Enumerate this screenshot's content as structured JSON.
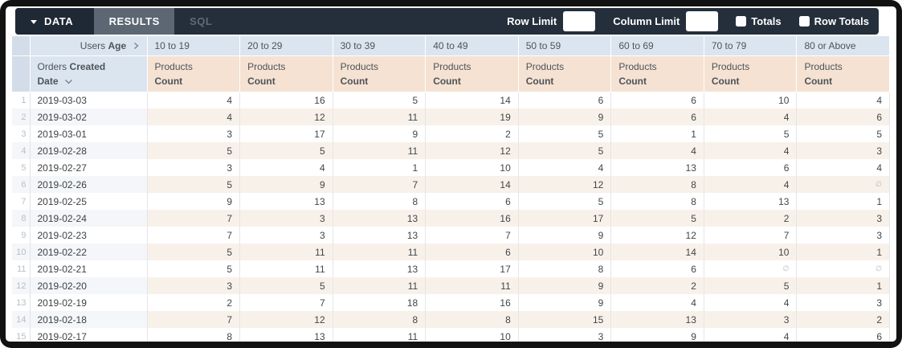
{
  "toolbar": {
    "tabs": [
      {
        "label": "DATA"
      },
      {
        "label": "RESULTS"
      },
      {
        "label": "SQL"
      }
    ],
    "row_limit_label": "Row Limit",
    "column_limit_label": "Column Limit",
    "row_limit_value": "",
    "column_limit_value": "",
    "totals_label": "Totals",
    "row_totals_label": "Row Totals",
    "totals_checked": false,
    "row_totals_checked": false
  },
  "table": {
    "pivot_dimension": {
      "prefix": "Users",
      "bold": "Age"
    },
    "row_dimension": {
      "line1_regular": "Orders",
      "line1_bold": "Created",
      "line2_bold": "Date"
    },
    "age_buckets": [
      "10 to 19",
      "20 to 29",
      "30 to 39",
      "40 to 49",
      "50 to 59",
      "60 to 69",
      "70 to 79",
      "80 or Above"
    ],
    "measure": {
      "line1": "Products",
      "line2": "Count"
    },
    "null_symbol": "∅",
    "rows": [
      {
        "num": 1,
        "date": "2019-03-03",
        "values": [
          4,
          16,
          5,
          14,
          6,
          6,
          10,
          4
        ]
      },
      {
        "num": 2,
        "date": "2019-03-02",
        "values": [
          4,
          12,
          11,
          19,
          9,
          6,
          4,
          6
        ]
      },
      {
        "num": 3,
        "date": "2019-03-01",
        "values": [
          3,
          17,
          9,
          2,
          5,
          1,
          5,
          5
        ]
      },
      {
        "num": 4,
        "date": "2019-02-28",
        "values": [
          5,
          5,
          11,
          12,
          5,
          4,
          4,
          3
        ]
      },
      {
        "num": 5,
        "date": "2019-02-27",
        "values": [
          3,
          4,
          1,
          10,
          4,
          13,
          6,
          4
        ]
      },
      {
        "num": 6,
        "date": "2019-02-26",
        "values": [
          5,
          9,
          7,
          14,
          12,
          8,
          4,
          "∅"
        ]
      },
      {
        "num": 7,
        "date": "2019-02-25",
        "values": [
          9,
          13,
          8,
          6,
          5,
          8,
          13,
          1
        ]
      },
      {
        "num": 8,
        "date": "2019-02-24",
        "values": [
          7,
          3,
          13,
          16,
          17,
          5,
          2,
          3
        ]
      },
      {
        "num": 9,
        "date": "2019-02-23",
        "values": [
          7,
          3,
          13,
          7,
          9,
          12,
          7,
          3
        ]
      },
      {
        "num": 10,
        "date": "2019-02-22",
        "values": [
          5,
          11,
          11,
          6,
          10,
          14,
          10,
          1
        ]
      },
      {
        "num": 11,
        "date": "2019-02-21",
        "values": [
          5,
          11,
          13,
          17,
          8,
          6,
          "∅",
          "∅"
        ]
      },
      {
        "num": 12,
        "date": "2019-02-20",
        "values": [
          3,
          5,
          11,
          11,
          9,
          2,
          5,
          1
        ]
      },
      {
        "num": 13,
        "date": "2019-02-19",
        "values": [
          2,
          7,
          18,
          16,
          9,
          4,
          4,
          3
        ]
      },
      {
        "num": 14,
        "date": "2019-02-18",
        "values": [
          7,
          12,
          8,
          8,
          15,
          13,
          3,
          2
        ]
      },
      {
        "num": 15,
        "date": "2019-02-17",
        "values": [
          8,
          13,
          11,
          10,
          3,
          9,
          4,
          6
        ]
      }
    ]
  },
  "colors": {
    "toolbar_bg": "#252f3c",
    "tab_data_bg": "#1f2835",
    "tab_results_bg": "#5c6773",
    "header_blue": "#dbe5f0",
    "header_beige": "#f5e2d2",
    "row_even_gray": "#f4f6f9",
    "row_even_beige": "#f8f1ea"
  }
}
